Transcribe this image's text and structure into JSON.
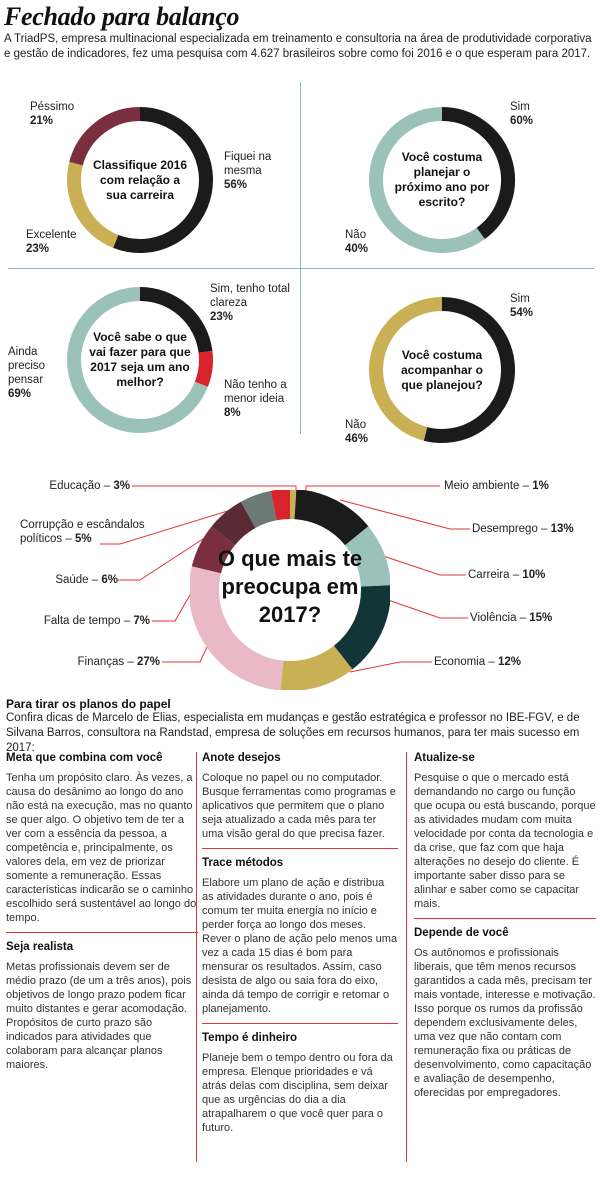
{
  "header": {
    "title": "Fechado para balanço",
    "intro": "A TriadPS, empresa multinacional especializada em treinamento e consultoria na área de produtividade corporativa e gestão de indicadores, fez uma pesquisa com 4.627 brasileiros sobre como foi 2016 e o que esperam para 2017."
  },
  "colors": {
    "black": "#1b1b1b",
    "teal": "#9bc2b8",
    "gold": "#c9b055",
    "maroon": "#7a2f3f",
    "red": "#d8232a",
    "pink": "#e9b9c7",
    "dark_teal": "#123637",
    "gray_green": "#6b7a74",
    "leader": "#e63333"
  },
  "chart_data": [
    {
      "type": "pie",
      "title": "Classifique 2016 com relação a sua carreira",
      "labels": [
        "Fiquei na mesma",
        "Excelente",
        "Péssimo"
      ],
      "values": [
        56,
        23,
        21
      ],
      "value_labels": [
        "56%",
        "23%",
        "21%"
      ]
    },
    {
      "type": "pie",
      "title": "Você costuma planejar o próximo ano por escrito?",
      "labels": [
        "Sim",
        "Não"
      ],
      "values": [
        60,
        40
      ],
      "value_labels": [
        "60%",
        "40%"
      ]
    },
    {
      "type": "pie",
      "title": "Você sabe o que vai fazer para que 2017 seja um ano melhor?",
      "labels": [
        "Sim, tenho total clareza",
        "Não tenho a menor ideia",
        "Ainda preciso pensar"
      ],
      "values": [
        23,
        8,
        69
      ],
      "value_labels": [
        "23%",
        "8%",
        "69%"
      ]
    },
    {
      "type": "pie",
      "title": "Você costuma acompanhar o que planejou?",
      "labels": [
        "Não",
        "Sim"
      ],
      "values": [
        46,
        54
      ],
      "value_labels": [
        "46%",
        "54%"
      ]
    },
    {
      "type": "pie",
      "title": "O que mais te preocupa em 2017?",
      "labels": [
        "Meio ambiente",
        "Desemprego",
        "Carreira",
        "Violência",
        "Economia",
        "Finanças",
        "Falta de tempo",
        "Saúde",
        "Corrupção e escândalos políticos",
        "Educação"
      ],
      "values": [
        1,
        13,
        10,
        15,
        12,
        27,
        7,
        6,
        5,
        3
      ],
      "value_labels": [
        "1%",
        "13%",
        "10%",
        "15%",
        "12%",
        "27%",
        "7%",
        "6%",
        "5%",
        "3%"
      ]
    }
  ],
  "donut_texts": {
    "q1": "Classifique 2016 com relação a sua carreira",
    "q2": "Você costuma planejar o próximo ano por escrito?",
    "q3": "Você sabe o que vai fazer para que 2017 seja um ano melhor?",
    "q4": "Você costuma acompanhar o que planejou?",
    "q5": "O que mais te preocupa em 2017?"
  },
  "tips": {
    "title": "Para tirar os planos do papel",
    "intro": "Confira dicas de Marcelo de Elias, especialista em mudanças e gestão estratégica e professor no IBE-FGV, e de Silvana Barros, consultora na Randstad, empresa de soluções em recursos humanos, para ter mais sucesso em 2017:",
    "columns": [
      [
        {
          "heading": "Meta que combina com você",
          "body": "Tenha um propósito claro. Às vezes, a causa do desânimo ao longo do ano não está na execução, mas no quanto se quer algo. O objetivo tem de ter a ver com a essência da pessoa, a competência e, principalmente, os valores dela, em vez de priorizar somente a remuneração. Essas características indicarão se o caminho escolhido será sustentável ao longo do tempo."
        },
        {
          "heading": "Seja realista",
          "body": "Metas profissionais devem ser de médio prazo (de um a três anos), pois objetivos de longo prazo podem ficar muito distantes e gerar acomodação. Propósitos de curto prazo são indicados para atividades que colaboram para alcançar planos maiores."
        }
      ],
      [
        {
          "heading": "Anote desejos",
          "body": "Coloque no papel ou no computador. Busque ferramentas como programas e aplicativos que permitem que o plano seja atualizado a cada mês para ter uma visão geral do que precisa fazer."
        },
        {
          "heading": "Trace métodos",
          "body": "Elabore um plano de ação e distribua as atividades durante o ano, pois é comum ter muita energia no início e perder força ao longo dos meses. Rever o plano de ação pelo menos uma vez a cada 15 dias é bom para mensurar os resultados. Assim, caso desista de algo ou saia fora do eixo, ainda dá tempo de corrigir e retomar o planejamento."
        },
        {
          "heading": "Tempo é dinheiro",
          "body": "Planeje bem o tempo dentro ou fora da empresa. Elenque prioridades e vá atrás delas com disciplina, sem deixar que as urgências do dia a dia atrapalharem o que você quer para o futuro."
        }
      ],
      [
        {
          "heading": "Atualize-se",
          "body": "Pesquise o que o mercado está demandando no cargo ou função que ocupa ou está buscando, porque as atividades mudam com muita velocidade por conta da tecnologia e da crise, que faz com que haja alterações no desejo do cliente. É importante saber disso para se alinhar e saber como se capacitar mais."
        },
        {
          "heading": "Depende de você",
          "body": "Os autônomos e profissionais liberais, que têm menos recursos garantidos a cada mês, precisam ter mais vontade, interesse e motivação. Isso porque os rumos da profissão dependem exclusivamente deles, uma vez que não contam com remuneração fixa ou práticas de desenvolvimento, como capacitação e avaliação de desempenho, oferecidas por empregadores."
        }
      ]
    ]
  }
}
